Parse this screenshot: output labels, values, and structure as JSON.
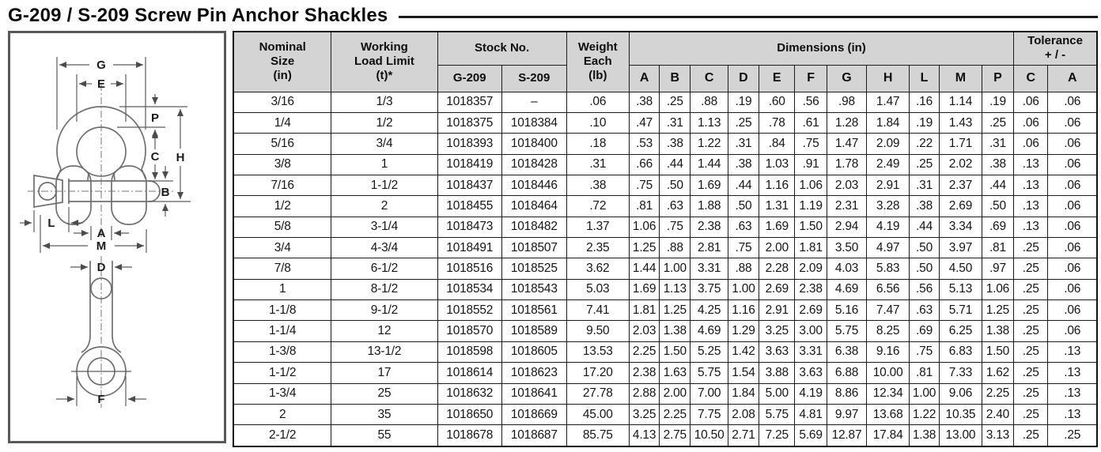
{
  "title": "G-209 / S-209 Screw Pin Anchor Shackles",
  "diagram": {
    "labels": {
      "G": "G",
      "E": "E",
      "P": "P",
      "C": "C",
      "H": "H",
      "B": "B",
      "L": "L",
      "A": "A",
      "M": "M",
      "D": "D",
      "F": "F"
    }
  },
  "table": {
    "headers": {
      "nominal": "Nominal\nSize\n(in)",
      "wll": "Working\nLoad Limit\n(t)*",
      "stock": "Stock No.",
      "stock_g": "G-209",
      "stock_s": "S-209",
      "weight": "Weight\nEach\n(lb)",
      "dimensions": "Dimensions (in)",
      "tolerance": "Tolerance\n+ / -"
    },
    "dim_letters": [
      "A",
      "B",
      "C",
      "D",
      "E",
      "F",
      "G",
      "H",
      "L",
      "M",
      "P"
    ],
    "tolerance_letters": [
      "C",
      "A"
    ],
    "rows": [
      {
        "size": "3/16",
        "wll": "1/3",
        "g209": "1018357",
        "s209": "–",
        "weight": ".06",
        "dims": [
          ".38",
          ".25",
          ".88",
          ".19",
          ".60",
          ".56",
          ".98",
          "1.47",
          ".16",
          "1.14",
          ".19"
        ],
        "tol": [
          ".06",
          ".06"
        ]
      },
      {
        "size": "1/4",
        "wll": "1/2",
        "g209": "1018375",
        "s209": "1018384",
        "weight": ".10",
        "dims": [
          ".47",
          ".31",
          "1.13",
          ".25",
          ".78",
          ".61",
          "1.28",
          "1.84",
          ".19",
          "1.43",
          ".25"
        ],
        "tol": [
          ".06",
          ".06"
        ]
      },
      {
        "size": "5/16",
        "wll": "3/4",
        "g209": "1018393",
        "s209": "1018400",
        "weight": ".18",
        "dims": [
          ".53",
          ".38",
          "1.22",
          ".31",
          ".84",
          ".75",
          "1.47",
          "2.09",
          ".22",
          "1.71",
          ".31"
        ],
        "tol": [
          ".06",
          ".06"
        ]
      },
      {
        "size": "3/8",
        "wll": "1",
        "g209": "1018419",
        "s209": "1018428",
        "weight": ".31",
        "dims": [
          ".66",
          ".44",
          "1.44",
          ".38",
          "1.03",
          ".91",
          "1.78",
          "2.49",
          ".25",
          "2.02",
          ".38"
        ],
        "tol": [
          ".13",
          ".06"
        ]
      },
      {
        "size": "7/16",
        "wll": "1-1/2",
        "g209": "1018437",
        "s209": "1018446",
        "weight": ".38",
        "dims": [
          ".75",
          ".50",
          "1.69",
          ".44",
          "1.16",
          "1.06",
          "2.03",
          "2.91",
          ".31",
          "2.37",
          ".44"
        ],
        "tol": [
          ".13",
          ".06"
        ]
      },
      {
        "size": "1/2",
        "wll": "2",
        "g209": "1018455",
        "s209": "1018464",
        "weight": ".72",
        "dims": [
          ".81",
          ".63",
          "1.88",
          ".50",
          "1.31",
          "1.19",
          "2.31",
          "3.28",
          ".38",
          "2.69",
          ".50"
        ],
        "tol": [
          ".13",
          ".06"
        ]
      },
      {
        "size": "5/8",
        "wll": "3-1/4",
        "g209": "1018473",
        "s209": "1018482",
        "weight": "1.37",
        "dims": [
          "1.06",
          ".75",
          "2.38",
          ".63",
          "1.69",
          "1.50",
          "2.94",
          "4.19",
          ".44",
          "3.34",
          ".69"
        ],
        "tol": [
          ".13",
          ".06"
        ]
      },
      {
        "size": "3/4",
        "wll": "4-3/4",
        "g209": "1018491",
        "s209": "1018507",
        "weight": "2.35",
        "dims": [
          "1.25",
          ".88",
          "2.81",
          ".75",
          "2.00",
          "1.81",
          "3.50",
          "4.97",
          ".50",
          "3.97",
          ".81"
        ],
        "tol": [
          ".25",
          ".06"
        ]
      },
      {
        "size": "7/8",
        "wll": "6-1/2",
        "g209": "1018516",
        "s209": "1018525",
        "weight": "3.62",
        "dims": [
          "1.44",
          "1.00",
          "3.31",
          ".88",
          "2.28",
          "2.09",
          "4.03",
          "5.83",
          ".50",
          "4.50",
          ".97"
        ],
        "tol": [
          ".25",
          ".06"
        ]
      },
      {
        "size": "1",
        "wll": "8-1/2",
        "g209": "1018534",
        "s209": "1018543",
        "weight": "5.03",
        "dims": [
          "1.69",
          "1.13",
          "3.75",
          "1.00",
          "2.69",
          "2.38",
          "4.69",
          "6.56",
          ".56",
          "5.13",
          "1.06"
        ],
        "tol": [
          ".25",
          ".06"
        ]
      },
      {
        "size": "1-1/8",
        "wll": "9-1/2",
        "g209": "1018552",
        "s209": "1018561",
        "weight": "7.41",
        "dims": [
          "1.81",
          "1.25",
          "4.25",
          "1.16",
          "2.91",
          "2.69",
          "5.16",
          "7.47",
          ".63",
          "5.71",
          "1.25"
        ],
        "tol": [
          ".25",
          ".06"
        ]
      },
      {
        "size": "1-1/4",
        "wll": "12",
        "g209": "1018570",
        "s209": "1018589",
        "weight": "9.50",
        "dims": [
          "2.03",
          "1.38",
          "4.69",
          "1.29",
          "3.25",
          "3.00",
          "5.75",
          "8.25",
          ".69",
          "6.25",
          "1.38"
        ],
        "tol": [
          ".25",
          ".06"
        ]
      },
      {
        "size": "1-3/8",
        "wll": "13-1/2",
        "g209": "1018598",
        "s209": "1018605",
        "weight": "13.53",
        "dims": [
          "2.25",
          "1.50",
          "5.25",
          "1.42",
          "3.63",
          "3.31",
          "6.38",
          "9.16",
          ".75",
          "6.83",
          "1.50"
        ],
        "tol": [
          ".25",
          ".13"
        ]
      },
      {
        "size": "1-1/2",
        "wll": "17",
        "g209": "1018614",
        "s209": "1018623",
        "weight": "17.20",
        "dims": [
          "2.38",
          "1.63",
          "5.75",
          "1.54",
          "3.88",
          "3.63",
          "6.88",
          "10.00",
          ".81",
          "7.33",
          "1.62"
        ],
        "tol": [
          ".25",
          ".13"
        ]
      },
      {
        "size": "1-3/4",
        "wll": "25",
        "g209": "1018632",
        "s209": "1018641",
        "weight": "27.78",
        "dims": [
          "2.88",
          "2.00",
          "7.00",
          "1.84",
          "5.00",
          "4.19",
          "8.86",
          "12.34",
          "1.00",
          "9.06",
          "2.25"
        ],
        "tol": [
          ".25",
          ".13"
        ]
      },
      {
        "size": "2",
        "wll": "35",
        "g209": "1018650",
        "s209": "1018669",
        "weight": "45.00",
        "dims": [
          "3.25",
          "2.25",
          "7.75",
          "2.08",
          "5.75",
          "4.81",
          "9.97",
          "13.68",
          "1.22",
          "10.35",
          "2.40"
        ],
        "tol": [
          ".25",
          ".13"
        ]
      },
      {
        "size": "2-1/2",
        "wll": "55",
        "g209": "1018678",
        "s209": "1018687",
        "weight": "85.75",
        "dims": [
          "4.13",
          "2.75",
          "10.50",
          "2.71",
          "7.25",
          "5.69",
          "12.87",
          "17.84",
          "1.38",
          "13.00",
          "3.13"
        ],
        "tol": [
          ".25",
          ".25"
        ]
      }
    ]
  },
  "colors": {
    "header_bg": "#d4d4d4",
    "grid": "#1c1c1c",
    "rule": "#1a1a1a"
  }
}
